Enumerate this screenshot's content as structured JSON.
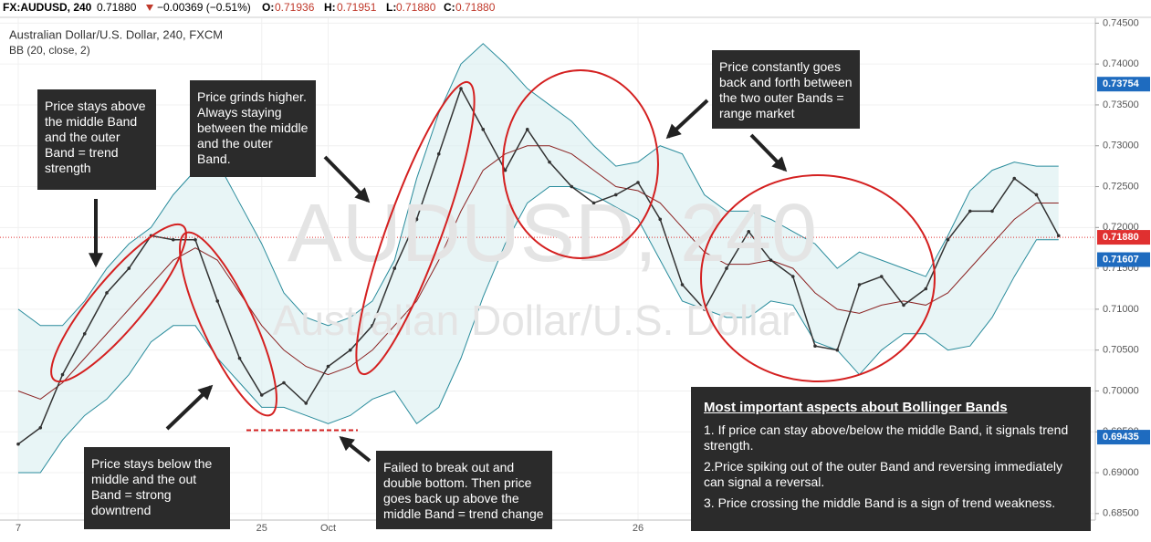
{
  "header": {
    "symbol": "FX:AUDUSD, 240",
    "last": "0.71880",
    "change": "−0.00369 (−0.51%)",
    "open_label": "O:",
    "open": "0.71936",
    "high_label": "H:",
    "high": "0.71951",
    "low_label": "L:",
    "low": "0.71880",
    "close_label": "C:",
    "close": "0.71880"
  },
  "chart_data": {
    "type": "line",
    "subtitle": "Australian Dollar/U.S. Dollar, 240, FXCM",
    "indicator": "BB (20, close, 2)",
    "watermark": "AUDUSD, 240",
    "watermark_sub": "Australian Dollar/U.S. Dollar",
    "categories": [
      "7",
      null,
      null,
      null,
      null,
      null,
      null,
      null,
      null,
      null,
      null,
      "25",
      null,
      null,
      "Oct",
      null,
      null,
      null,
      null,
      null,
      null,
      null,
      null,
      null,
      null,
      null,
      null,
      null,
      "26",
      null,
      null,
      null,
      null,
      null,
      null,
      null,
      null,
      null,
      null,
      null,
      null,
      null,
      null,
      null,
      null,
      null,
      null,
      null
    ],
    "series": [
      {
        "color": "#2a8c9c",
        "values": [
          0.71,
          0.708,
          0.708,
          0.711,
          0.715,
          0.718,
          0.72,
          0.724,
          0.727,
          0.728,
          0.723,
          0.718,
          0.712,
          0.709,
          0.708,
          0.709,
          0.711,
          0.716,
          0.726,
          0.734,
          0.74,
          0.7425,
          0.74,
          0.737,
          0.735,
          0.733,
          0.73,
          0.7275,
          0.728,
          0.73,
          0.729,
          0.724,
          0.722,
          0.722,
          0.721,
          0.7195,
          0.718,
          0.715,
          0.717,
          0.716,
          0.715,
          0.714,
          0.719,
          0.7245,
          0.727,
          0.728,
          0.7275,
          0.7275
        ]
      },
      {
        "color": "#2a8c9c",
        "values": [
          0.69,
          0.69,
          0.694,
          0.697,
          0.699,
          0.702,
          0.706,
          0.708,
          0.708,
          0.704,
          0.701,
          0.698,
          0.698,
          0.697,
          0.696,
          0.697,
          0.699,
          0.7,
          0.696,
          0.698,
          0.704,
          0.7115,
          0.718,
          0.723,
          0.725,
          0.725,
          0.724,
          0.7225,
          0.721,
          0.716,
          0.711,
          0.71,
          0.709,
          0.709,
          0.711,
          0.7105,
          0.706,
          0.705,
          0.702,
          0.705,
          0.707,
          0.707,
          0.705,
          0.7055,
          0.709,
          0.714,
          0.7185,
          0.7185
        ]
      },
      {
        "color": "#8b2222",
        "values": [
          0.7,
          0.699,
          0.701,
          0.704,
          0.707,
          0.71,
          0.713,
          0.716,
          0.7175,
          0.716,
          0.712,
          0.708,
          0.705,
          0.703,
          0.702,
          0.703,
          0.705,
          0.708,
          0.711,
          0.716,
          0.722,
          0.727,
          0.729,
          0.73,
          0.73,
          0.729,
          0.727,
          0.725,
          0.7245,
          0.723,
          0.72,
          0.717,
          0.7155,
          0.7155,
          0.716,
          0.715,
          0.712,
          0.71,
          0.7095,
          0.7105,
          0.711,
          0.7105,
          0.712,
          0.715,
          0.718,
          0.721,
          0.723,
          0.723
        ]
      },
      {
        "color": "#333333",
        "values": [
          0.6935,
          0.6955,
          0.702,
          0.707,
          0.712,
          0.715,
          0.719,
          0.7185,
          0.7185,
          0.711,
          0.704,
          0.6995,
          0.701,
          0.6985,
          0.703,
          0.705,
          0.708,
          0.715,
          0.721,
          0.729,
          0.737,
          0.732,
          0.727,
          0.732,
          0.728,
          0.725,
          0.723,
          0.724,
          0.7255,
          0.721,
          0.713,
          0.71,
          0.715,
          0.7195,
          0.716,
          0.714,
          0.7055,
          0.705,
          0.713,
          0.714,
          0.7105,
          0.7125,
          0.7185,
          0.722,
          0.722,
          0.726,
          0.724,
          0.719
        ]
      }
    ],
    "band_fill": "#d9eef0",
    "ylim": [
      0.6842,
      0.7456
    ],
    "yticks": [
      {
        "value": 0.685,
        "label": "0.68500"
      },
      {
        "value": 0.69,
        "label": "0.69000"
      },
      {
        "value": 0.695,
        "label": "0.69500"
      },
      {
        "value": 0.7,
        "label": "0.70000"
      },
      {
        "value": 0.705,
        "label": "0.70500"
      },
      {
        "value": 0.71,
        "label": "0.71000"
      },
      {
        "value": 0.715,
        "label": "0.71500"
      },
      {
        "value": 0.72,
        "label": "0.72000"
      },
      {
        "value": 0.725,
        "label": "0.72500"
      },
      {
        "value": 0.73,
        "label": "0.73000"
      },
      {
        "value": 0.735,
        "label": "0.73500"
      },
      {
        "value": 0.74,
        "label": "0.74000"
      },
      {
        "value": 0.745,
        "label": "0.74500"
      }
    ],
    "price_labels": [
      {
        "value": 0.73754,
        "label": "0.73754",
        "color": "#1e6bbf"
      },
      {
        "value": 0.7188,
        "label": "0.71880",
        "color": "#e03030"
      },
      {
        "value": 0.71607,
        "label": "0.71607",
        "color": "#1e6bbf"
      },
      {
        "value": 0.69435,
        "label": "0.69435",
        "color": "#1e6bbf"
      }
    ],
    "support_level": 0.6952,
    "grid": true
  },
  "annotations": {
    "a1": "Price stays above the middle Band and the outer Band = trend strength",
    "a2": "Price grinds higher. Always staying between the middle and the outer Band.",
    "a3": "Price constantly goes back and forth between the two outer Bands = range market",
    "a4": "Price stays below the middle and the out Band = strong downtrend",
    "a5": "Failed to break out and double bottom. Then price goes back up above the middle Band = trend change",
    "box_title": "Most important aspects about Bollinger Bands",
    "items": [
      "1. If price can stay above/below the middle Band, it signals trend strength.",
      "2.Price spiking out of the outer Band and reversing immediately can signal a reversal.",
      "3. Price crossing the middle Band is a sign of trend weakness."
    ]
  }
}
